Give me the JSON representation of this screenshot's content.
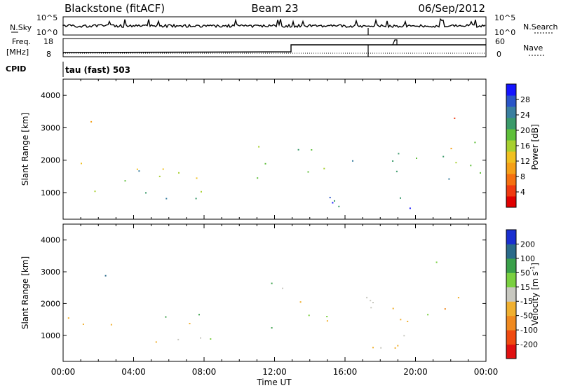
{
  "header": {
    "station": "Blackstone (fitACF)",
    "beam": "Beam 23",
    "date": "06/Sep/2012"
  },
  "top_panels": {
    "nsky_label": "N.Sky",
    "nsky_ticks": [
      "10^5",
      "10^0"
    ],
    "nsearch_label": "N.Search",
    "nsearch_ticks": [
      "10^5",
      "10^0"
    ],
    "freq_label": "Freq.",
    "freq_unit": "[MHz]",
    "freq_ticks": [
      "18",
      "8"
    ],
    "nave_label": "Nave",
    "nave_ticks": [
      "60",
      "0"
    ],
    "cpid_label": "CPID",
    "cpid_value": "tau (fast) 503"
  },
  "chart_data": [
    {
      "type": "heatmap",
      "title": "",
      "quantity": "Power",
      "xlabel": "Time UT",
      "ylabel": "Slant Range [km]",
      "x_ticks": [
        "00:00",
        "04:00",
        "08:00",
        "12:00",
        "16:00",
        "20:00",
        "00:00"
      ],
      "xlim_hours": [
        0,
        24
      ],
      "y_ticks": [
        1000,
        2000,
        3000,
        4000
      ],
      "ylim_km": [
        180,
        4500
      ],
      "colorbar": {
        "label": "Power [dB]",
        "ticks": [
          "28",
          "24",
          "20",
          "16",
          "12",
          "8",
          "4"
        ],
        "colors": [
          "#1414ff",
          "#2a55c8",
          "#3a7fa0",
          "#3a9a6a",
          "#5fbf3a",
          "#a8d030",
          "#f0c020",
          "#f5a018",
          "#f57010",
          "#f03a10",
          "#e00000"
        ]
      },
      "regions": [
        {
          "t": [
            0.0,
            0.8
          ],
          "r": [
            1350,
            1750
          ],
          "level": 0.72
        },
        {
          "t": [
            0.8,
            1.6
          ],
          "r": [
            1100,
            2100
          ],
          "level": 0.45
        },
        {
          "t": [
            1.5,
            10.5
          ],
          "r": [
            1350,
            1900
          ],
          "level": 0.5
        },
        {
          "t": [
            4.0,
            6.5
          ],
          "r": [
            1450,
            1750
          ],
          "level": 0.78
        },
        {
          "t": [
            1.7,
            10.6
          ],
          "r": [
            750,
            1150
          ],
          "level": 0.6
        },
        {
          "t": [
            5.0,
            9.8
          ],
          "r": [
            800,
            1050
          ],
          "level": 0.88
        },
        {
          "t": [
            1.5,
            2.5
          ],
          "r": [
            2800,
            3400
          ],
          "level": 0.4
        },
        {
          "t": [
            10.8,
            12.6
          ],
          "r": [
            1000,
            2700
          ],
          "level": 0.62
        },
        {
          "t": [
            13.0,
            24.0
          ],
          "r": [
            1450,
            2350
          ],
          "level": 0.6
        },
        {
          "t": [
            14.5,
            21.5
          ],
          "r": [
            450,
            1100
          ],
          "level": 0.8
        },
        {
          "t": [
            15.0,
            19.0
          ],
          "r": [
            450,
            750
          ],
          "level": 0.95
        },
        {
          "t": [
            19.0,
            24.0
          ],
          "r": [
            1400,
            1900
          ],
          "level": 0.74
        },
        {
          "t": [
            21.0,
            23.8
          ],
          "r": [
            2300,
            2800
          ],
          "level": 0.4
        },
        {
          "t": [
            21.0,
            23.6
          ],
          "r": [
            3100,
            3400
          ],
          "level": 0.3
        }
      ]
    },
    {
      "type": "heatmap",
      "title": "",
      "quantity": "Velocity",
      "xlabel": "Time UT",
      "ylabel": "Slant Range [km]",
      "x_ticks": [
        "00:00",
        "04:00",
        "08:00",
        "12:00",
        "16:00",
        "20:00",
        "00:00"
      ],
      "xlim_hours": [
        0,
        24
      ],
      "y_ticks": [
        1000,
        2000,
        3000,
        4000
      ],
      "ylim_km": [
        180,
        4500
      ],
      "colorbar": {
        "label": "Velocity [m s",
        "label_sup": "-1",
        "label_end": "]",
        "ticks": [
          "200",
          "100",
          "50",
          "15",
          "-15",
          "-50",
          "-100",
          "-200"
        ],
        "colors": [
          "#1a2fd0",
          "#2a6a8a",
          "#3aa04a",
          "#7ad040",
          "#c8c8c0",
          "#f0b030",
          "#f08a20",
          "#f04a10",
          "#e01010"
        ]
      },
      "regions": [
        {
          "t": [
            0.0,
            1.0
          ],
          "r": [
            1300,
            1800
          ],
          "level": 0.5
        },
        {
          "t": [
            1.0,
            4.0
          ],
          "r": [
            1350,
            2000
          ],
          "level": 0.33
        },
        {
          "t": [
            3.5,
            8.0
          ],
          "r": [
            1350,
            1850
          ],
          "level": 0.6
        },
        {
          "t": [
            1.5,
            10.5
          ],
          "r": [
            750,
            1150
          ],
          "level": 0.5
        },
        {
          "t": [
            1.8,
            2.5
          ],
          "r": [
            2800,
            3500
          ],
          "level": 0.98
        },
        {
          "t": [
            10.8,
            12.6
          ],
          "r": [
            1000,
            2700
          ],
          "level": 0.65
        },
        {
          "t": [
            13.0,
            24.0
          ],
          "r": [
            1450,
            2350
          ],
          "level": 0.5
        },
        {
          "t": [
            14.5,
            21.5
          ],
          "r": [
            450,
            1100
          ],
          "level": 0.5
        },
        {
          "t": [
            19.0,
            24.0
          ],
          "r": [
            1400,
            1900
          ],
          "level": 0.5
        },
        {
          "t": [
            21.0,
            23.8
          ],
          "r": [
            3100,
            3400
          ],
          "level": 0.5
        }
      ]
    }
  ]
}
